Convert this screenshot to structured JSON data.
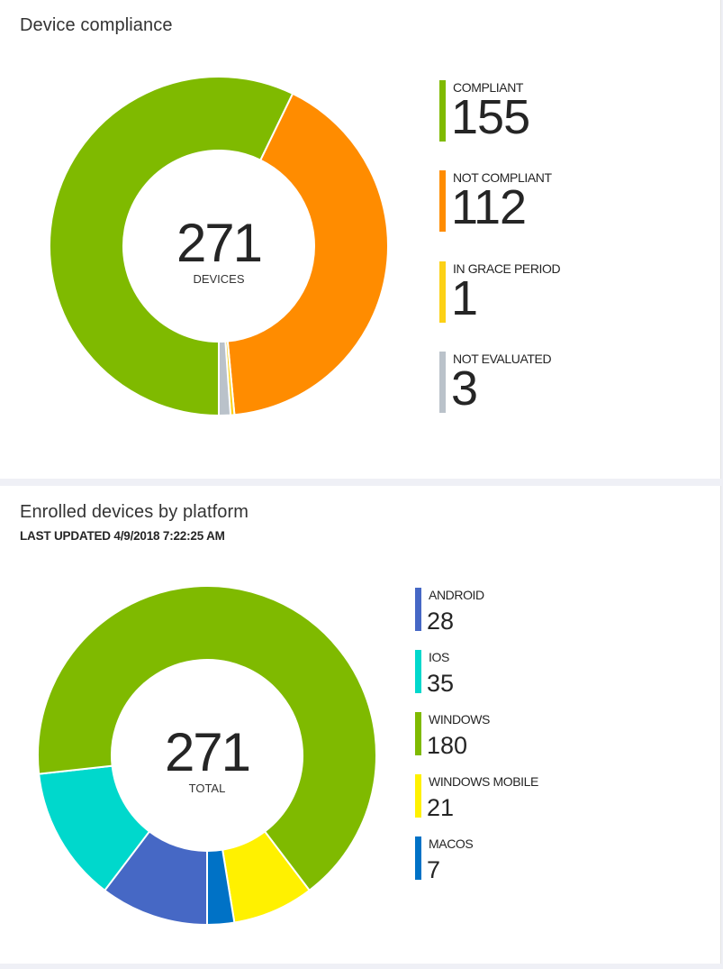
{
  "compliance": {
    "title": "Device compliance",
    "center": {
      "value": "271",
      "caption": "DEVICES"
    },
    "items": [
      {
        "label": "COMPLIANT",
        "value": "155",
        "color": "#7fba00"
      },
      {
        "label": "NOT COMPLIANT",
        "value": "112",
        "color": "#ff8c00"
      },
      {
        "label": "IN GRACE PERIOD",
        "value": "1",
        "color": "#fcd116"
      },
      {
        "label": "NOT EVALUATED",
        "value": "3",
        "color": "#bac2ca"
      }
    ]
  },
  "platform": {
    "title": "Enrolled devices by platform",
    "last_updated": "LAST UPDATED 4/9/2018 7:22:25 AM",
    "center": {
      "value": "271",
      "caption": "TOTAL"
    },
    "items": [
      {
        "label": "ANDROID",
        "value": "28",
        "color": "#4668c5"
      },
      {
        "label": "IOS",
        "value": "35",
        "color": "#00d8cc"
      },
      {
        "label": "WINDOWS",
        "value": "180",
        "color": "#7fba00"
      },
      {
        "label": "WINDOWS MOBILE",
        "value": "21",
        "color": "#fff100"
      },
      {
        "label": "MACOS",
        "value": "7",
        "color": "#0072c6"
      }
    ]
  },
  "chart_data": [
    {
      "type": "pie",
      "title": "Device compliance",
      "center_text": "271 DEVICES",
      "categories": [
        "COMPLIANT",
        "NOT COMPLIANT",
        "IN GRACE PERIOD",
        "NOT EVALUATED"
      ],
      "values": [
        155,
        112,
        1,
        3
      ],
      "colors": [
        "#7fba00",
        "#ff8c00",
        "#fcd116",
        "#bac2ca"
      ],
      "total": 271,
      "legend_position": "right",
      "donut": true
    },
    {
      "type": "pie",
      "title": "Enrolled devices by platform",
      "subtitle": "LAST UPDATED 4/9/2018 7:22:25 AM",
      "center_text": "271 TOTAL",
      "categories": [
        "ANDROID",
        "IOS",
        "WINDOWS",
        "WINDOWS MOBILE",
        "MACOS"
      ],
      "values": [
        28,
        35,
        180,
        21,
        7
      ],
      "colors": [
        "#4668c5",
        "#00d8cc",
        "#7fba00",
        "#fff100",
        "#0072c6"
      ],
      "total": 271,
      "legend_position": "right",
      "donut": true
    }
  ]
}
